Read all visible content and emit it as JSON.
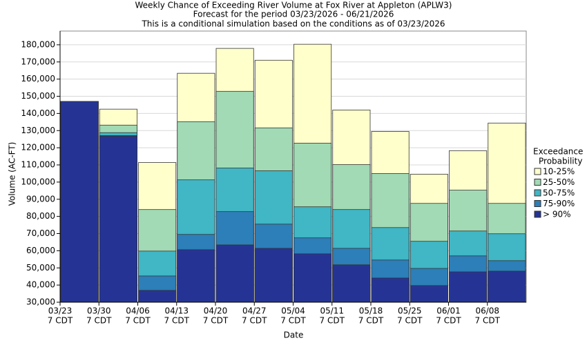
{
  "chart_data": {
    "type": "overlapping_bar",
    "title": [
      "Weekly Chance of Exceeding River Volume at Fox River at Appleton (APLW3)",
      "Forecast for the period 03/23/2026 - 06/21/2026",
      "This is a conditional simulation based on the conditions as of 03/23/2026"
    ],
    "xlabel": "Date",
    "ylabel": "Volume (AC-FT)",
    "legend_title": [
      "Exceedance",
      "Probability"
    ],
    "categories": [
      [
        "03/23",
        "7 CDT"
      ],
      [
        "03/30",
        "7 CDT"
      ],
      [
        "04/06",
        "7 CDT"
      ],
      [
        "04/13",
        "7 CDT"
      ],
      [
        "04/20",
        "7 CDT"
      ],
      [
        "04/27",
        "7 CDT"
      ],
      [
        "05/04",
        "7 CDT"
      ],
      [
        "05/11",
        "7 CDT"
      ],
      [
        "05/18",
        "7 CDT"
      ],
      [
        "05/25",
        "7 CDT"
      ],
      [
        "06/01",
        "7 CDT"
      ],
      [
        "06/08",
        "7 CDT"
      ]
    ],
    "series": [
      {
        "name": "10-25%",
        "color": "#ffffcc",
        "values": [
          147000,
          142500,
          111400,
          163400,
          177900,
          171000,
          180300,
          142000,
          129500,
          104600,
          118300,
          134400
        ]
      },
      {
        "name": "25-50%",
        "color": "#a1dab4",
        "values": [
          147000,
          133200,
          84000,
          135200,
          152900,
          131600,
          122700,
          110200,
          105000,
          87600,
          95300,
          87600
        ]
      },
      {
        "name": "50-75%",
        "color": "#41b6c4",
        "values": [
          147000,
          128800,
          59800,
          101300,
          108200,
          106600,
          85600,
          84000,
          73500,
          65500,
          71500,
          69900
        ]
      },
      {
        "name": "75-90%",
        "color": "#2c7fb8",
        "values": [
          147000,
          127100,
          45300,
          69500,
          82800,
          75500,
          67500,
          61400,
          54600,
          49700,
          57000,
          54200
        ]
      },
      {
        "name": "> 90%",
        "color": "#253494",
        "values": [
          147000,
          126700,
          36900,
          60600,
          63400,
          61400,
          58200,
          51800,
          44100,
          39700,
          47700,
          48100
        ]
      }
    ],
    "ylim": [
      30000,
      188000
    ],
    "yticks": [
      {
        "value": 30000,
        "label": "30,000"
      },
      {
        "value": 40000,
        "label": "40,000"
      },
      {
        "value": 50000,
        "label": "50,000"
      },
      {
        "value": 60000,
        "label": "60,000"
      },
      {
        "value": 70000,
        "label": "70,000"
      },
      {
        "value": 80000,
        "label": "80,000"
      },
      {
        "value": 90000,
        "label": "90,000"
      },
      {
        "value": 100000,
        "label": "100,000"
      },
      {
        "value": 110000,
        "label": "110,000"
      },
      {
        "value": 120000,
        "label": "120,000"
      },
      {
        "value": 130000,
        "label": "130,000"
      },
      {
        "value": 140000,
        "label": "140,000"
      },
      {
        "value": 150000,
        "label": "150,000"
      },
      {
        "value": 160000,
        "label": "160,000"
      },
      {
        "value": 170000,
        "label": "170,000"
      },
      {
        "value": 180000,
        "label": "180,000"
      }
    ],
    "grid": true
  }
}
